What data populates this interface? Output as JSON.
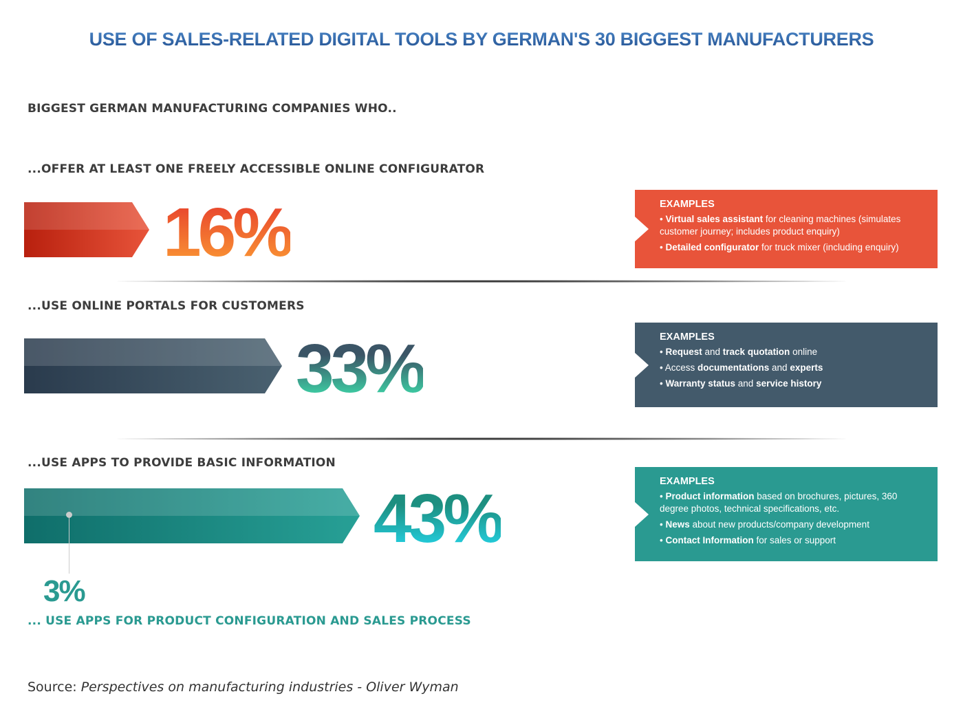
{
  "title": "USE OF SALES-RELATED DIGITAL TOOLS BY GERMAN'S 30 BIGGEST MANUFACTURERS",
  "intro": "BIGGEST GERMAN MANUFACTURING COMPANIES WHO..",
  "chart_data": {
    "type": "bar",
    "title": "USE OF SALES-RELATED DIGITAL TOOLS BY GERMAN'S 30 BIGGEST MANUFACTURERS",
    "categories": [
      "...OFFER AT LEAST ONE FREELY ACCESSIBLE ONLINE CONFIGURATOR",
      "...USE ONLINE PORTALS FOR CUSTOMERS",
      "...USE APPS TO PROVIDE BASIC INFORMATION"
    ],
    "values": [
      16,
      33,
      43
    ],
    "labels": [
      "16%",
      "33%",
      "43%"
    ],
    "sub_value": 3,
    "sub_label": "3%",
    "sub_category": "... USE APPS FOR PRODUCT CONFIGURATION AND SALES PROCESS",
    "unit": "%",
    "ylim": [
      0,
      100
    ]
  },
  "colors": {
    "orange": "#e8543a",
    "slate": "#435a6b",
    "teal": "#2a9a91",
    "title": "#2f63a8"
  },
  "examples": [
    {
      "heading": "EXAMPLES",
      "bullets": [
        [
          {
            "b": "Virtual sales assistant"
          },
          {
            "t": " for cleaning machines (simulates customer journey; includes product enquiry)"
          }
        ],
        [
          {
            "b": "Detailed configurator"
          },
          {
            "t": " for truck mixer (including enquiry)"
          }
        ]
      ]
    },
    {
      "heading": "EXAMPLES",
      "bullets": [
        [
          {
            "b": "Request"
          },
          {
            "t": " and "
          },
          {
            "b": "track quotation"
          },
          {
            "t": " online"
          }
        ],
        [
          {
            "t": "Access "
          },
          {
            "b": "documentations"
          },
          {
            "t": " and "
          },
          {
            "b": "experts"
          }
        ],
        [
          {
            "b": "Warranty status"
          },
          {
            "t": " and "
          },
          {
            "b": "service history"
          }
        ]
      ]
    },
    {
      "heading": "EXAMPLES",
      "bullets": [
        [
          {
            "b": "Product information"
          },
          {
            "t": " based on brochures, pictures, 360 degree photos, technical specifications, etc."
          }
        ],
        [
          {
            "b": "News"
          },
          {
            "t": " about new products/company development"
          }
        ],
        [
          {
            "b": "Contact Information"
          },
          {
            "t": " for sales or support"
          }
        ]
      ]
    }
  ],
  "bullet": "•",
  "source": {
    "label": "Source:",
    "text": "Perspectives on manufacturing industries - Oliver Wyman"
  }
}
